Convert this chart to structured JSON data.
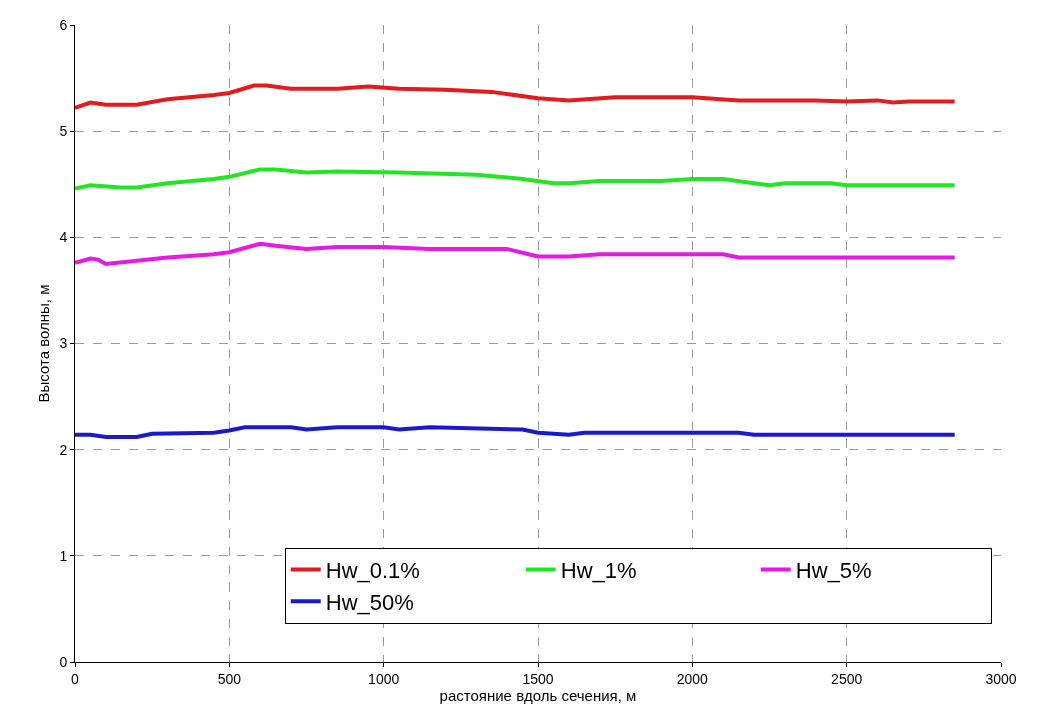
{
  "chart_data": {
    "type": "line",
    "xlabel": "растояние вдоль сечения, м",
    "ylabel": "Высота волны, м",
    "xlim": [
      0,
      3000
    ],
    "xticks": [
      0,
      500,
      1000,
      1500,
      2000,
      2500,
      3000
    ],
    "ylim": [
      0,
      6
    ],
    "yticks": [
      0,
      1,
      2,
      3,
      4,
      5,
      6
    ],
    "grid": true,
    "legend": "bottom right",
    "marker": "none",
    "line_style": "solid",
    "series": [
      {
        "name": "Hw_0.1%",
        "color": "#e41a1c",
        "x": [
          0,
          50,
          100,
          200,
          300,
          450,
          500,
          580,
          620,
          700,
          850,
          950,
          1050,
          1200,
          1350,
          1500,
          1600,
          1750,
          2000,
          2150,
          2400,
          2500,
          2600,
          2650,
          2700,
          2850
        ],
        "values": [
          5.22,
          5.27,
          5.25,
          5.25,
          5.3,
          5.34,
          5.36,
          5.43,
          5.43,
          5.4,
          5.4,
          5.42,
          5.4,
          5.39,
          5.37,
          5.31,
          5.29,
          5.32,
          5.32,
          5.29,
          5.29,
          5.28,
          5.29,
          5.27,
          5.28,
          5.28
        ]
      },
      {
        "name": "Hw_1%",
        "color": "#22e622",
        "x": [
          0,
          50,
          150,
          200,
          300,
          450,
          500,
          600,
          650,
          750,
          850,
          1050,
          1300,
          1450,
          1550,
          1600,
          1700,
          1900,
          2000,
          2100,
          2200,
          2250,
          2300,
          2450,
          2500,
          2850
        ],
        "values": [
          4.46,
          4.49,
          4.47,
          4.47,
          4.51,
          4.55,
          4.57,
          4.64,
          4.64,
          4.61,
          4.62,
          4.61,
          4.59,
          4.55,
          4.51,
          4.51,
          4.53,
          4.53,
          4.55,
          4.55,
          4.51,
          4.49,
          4.51,
          4.51,
          4.49,
          4.49
        ]
      },
      {
        "name": "Hw_5%",
        "color": "#e619e6",
        "x": [
          0,
          50,
          75,
          100,
          200,
          300,
          450,
          500,
          600,
          650,
          750,
          850,
          1000,
          1150,
          1400,
          1500,
          1600,
          1700,
          2100,
          2150,
          2850
        ],
        "values": [
          3.76,
          3.8,
          3.79,
          3.75,
          3.78,
          3.81,
          3.84,
          3.86,
          3.94,
          3.92,
          3.89,
          3.91,
          3.91,
          3.89,
          3.89,
          3.82,
          3.82,
          3.84,
          3.84,
          3.81,
          3.81
        ]
      },
      {
        "name": "Hw_50%",
        "color": "#1a1acc",
        "x": [
          0,
          50,
          100,
          200,
          250,
          450,
          500,
          550,
          700,
          750,
          850,
          1000,
          1050,
          1150,
          1450,
          1500,
          1600,
          1650,
          2150,
          2200,
          2850
        ],
        "values": [
          2.14,
          2.14,
          2.12,
          2.12,
          2.15,
          2.16,
          2.18,
          2.21,
          2.21,
          2.19,
          2.21,
          2.21,
          2.19,
          2.21,
          2.19,
          2.16,
          2.14,
          2.16,
          2.16,
          2.14,
          2.14
        ]
      }
    ]
  }
}
